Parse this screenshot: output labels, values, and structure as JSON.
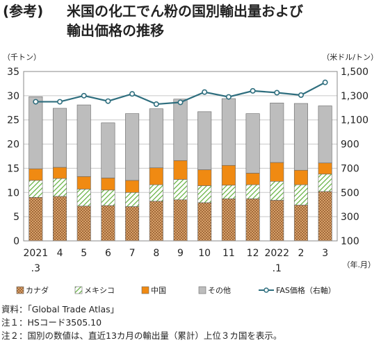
{
  "header": {
    "tag": "(参考)",
    "title_line1": "米国の化工でん粉の国別輸出量および",
    "title_line2": "輸出価格の推移"
  },
  "chart_data": {
    "type": "bar",
    "stacked": true,
    "left_unit": "（千トン）",
    "right_unit": "（米ドル/トン）",
    "x_unit": "（年.月）",
    "categories": [
      "2021\n.3",
      "4",
      "5",
      "6",
      "7",
      "8",
      "9",
      "10",
      "11",
      "12",
      "2022\n.1",
      "2",
      "3"
    ],
    "ylim": [
      0,
      35
    ],
    "yticks": [
      0,
      5,
      10,
      15,
      20,
      25,
      30,
      35
    ],
    "y2lim": [
      100,
      1500
    ],
    "y2ticks": [
      "100",
      "300",
      "500",
      "700",
      "900",
      "1,100",
      "1,300",
      "1,500"
    ],
    "y2tick_values": [
      100,
      300,
      500,
      700,
      900,
      1100,
      1300,
      1500
    ],
    "grid": true,
    "legend_position": "bottom",
    "series": [
      {
        "name": "カナダ",
        "color": "#b0703a",
        "pattern": "dots",
        "values": [
          9.0,
          9.2,
          7.2,
          7.3,
          7.1,
          8.2,
          8.5,
          7.9,
          8.7,
          8.7,
          8.4,
          7.4,
          10.2
        ]
      },
      {
        "name": "メキシコ",
        "color": "#6aaa3a",
        "pattern": "hatch",
        "values": [
          3.5,
          3.7,
          3.5,
          3.2,
          2.9,
          3.4,
          4.2,
          3.5,
          2.8,
          2.9,
          3.9,
          4.2,
          3.6
        ]
      },
      {
        "name": "中国",
        "color": "#f08a12",
        "pattern": "solid",
        "values": [
          2.4,
          2.3,
          2.6,
          2.5,
          2.5,
          3.5,
          3.9,
          3.3,
          4.1,
          2.4,
          3.9,
          3.0,
          2.3
        ]
      },
      {
        "name": "その他",
        "color": "#bdbdbd",
        "pattern": "solid",
        "values": [
          14.9,
          12.2,
          14.8,
          11.4,
          13.8,
          12.2,
          12.7,
          12.0,
          13.8,
          12.3,
          12.3,
          13.8,
          11.8
        ]
      }
    ],
    "line_series": {
      "name": "FAS価格（右軸）",
      "color": "#2e6e7e",
      "values": [
        1250,
        1250,
        1300,
        1255,
        1315,
        1230,
        1245,
        1330,
        1290,
        1340,
        1325,
        1305,
        1410
      ]
    }
  },
  "notes": {
    "source": "資料：「Global Trade Atlas」",
    "note1": "注１：HSコード3505.10",
    "note2": "注２：国別の数値は、直近13カ月の輸出量（累計）上位３カ国を表示。"
  }
}
